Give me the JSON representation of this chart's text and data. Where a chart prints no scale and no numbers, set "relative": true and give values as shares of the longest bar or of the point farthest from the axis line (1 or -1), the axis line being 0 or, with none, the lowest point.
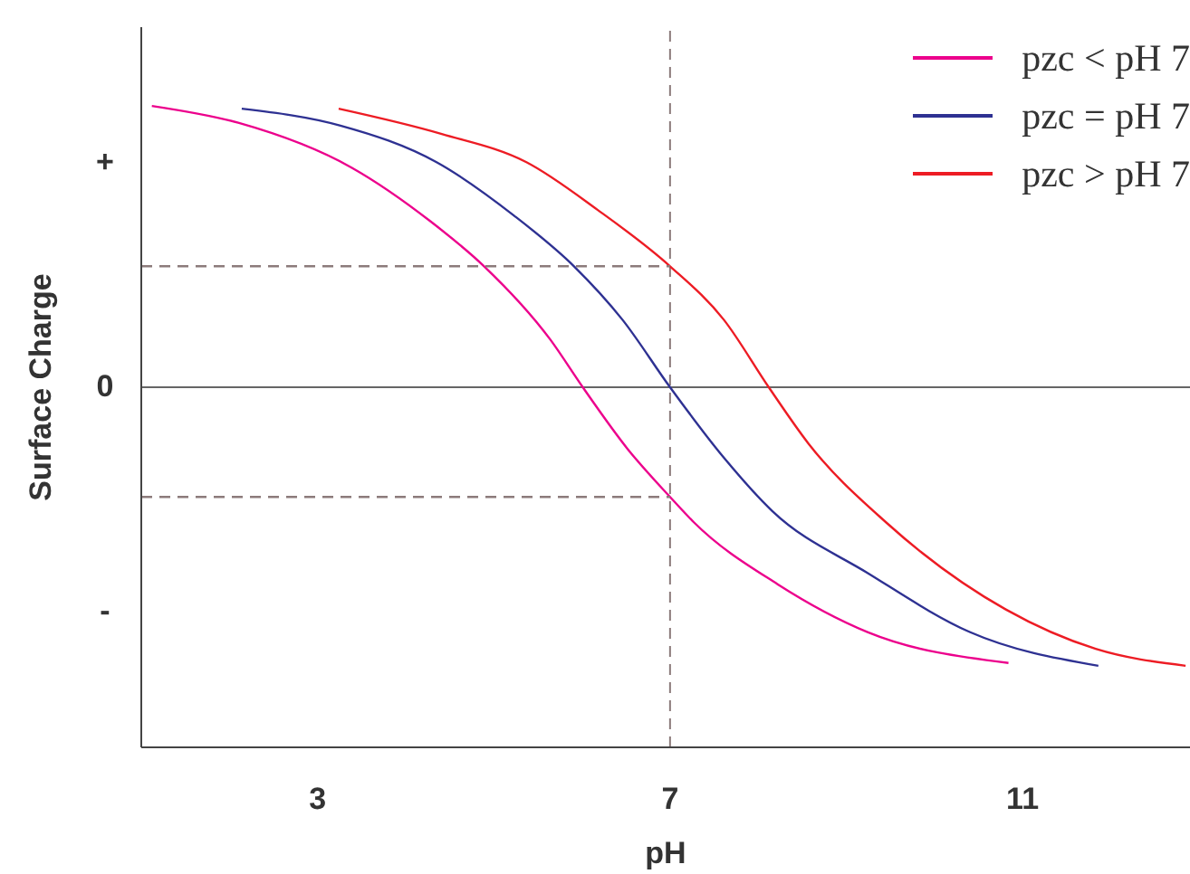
{
  "chart_data": {
    "type": "line",
    "relative": true,
    "xlabel": "pH",
    "ylabel": "Surface Charge",
    "xlim": [
      1,
      12.9
    ],
    "xticks": [
      3,
      7,
      11
    ],
    "annotations": [
      "+",
      "0",
      "-"
    ],
    "legend": "top right",
    "series": [
      {
        "name": "pzc < pH 7",
        "color": "#ec008c",
        "x": [
          1.12,
          2.1,
          3.39,
          4.28,
          4.89,
          5.64,
          6.01,
          6.52,
          7,
          7.27,
          8.22,
          9.24,
          10.84
        ],
        "values": [
          1,
          0.94,
          0.78,
          0.59,
          0.43,
          0.17,
          0,
          -0.22,
          -0.39,
          -0.48,
          -0.7,
          -0.87,
          -0.98
        ]
      },
      {
        "name": "pzc = pH 7",
        "color": "#2e3192",
        "x": [
          2.14,
          3.26,
          4.35,
          5.23,
          5.91,
          6.46,
          7,
          7.61,
          8.16,
          9.24,
          10.4,
          11.86
        ],
        "values": [
          0.99,
          0.93,
          0.8,
          0.61,
          0.43,
          0.24,
          0,
          -0.25,
          -0.44,
          -0.66,
          -0.87,
          -0.99
        ]
      },
      {
        "name": "pzc > pH 7",
        "color": "#ed1c24",
        "x": [
          3.24,
          4.41,
          5.37,
          6.18,
          7,
          7.61,
          8.12,
          8.57,
          9.45,
          10.81,
          11.83,
          12.85
        ],
        "values": [
          0.99,
          0.9,
          0.8,
          0.63,
          0.43,
          0.24,
          0,
          -0.2,
          -0.48,
          -0.79,
          -0.93,
          -0.99
        ]
      },
      {
        "type": "line",
        "color": "#8c7b7b",
        "line_style": "dashed",
        "x": [
          1,
          7
        ],
        "values": [
          0.43,
          0.43
        ]
      },
      {
        "type": "line",
        "color": "#8c7b7b",
        "line_style": "dashed",
        "x": [
          1,
          7
        ],
        "values": [
          -0.39,
          -0.39
        ]
      }
    ],
    "ref_lines": [
      {
        "axis": "x",
        "value": 7,
        "color": "#8c7b7b",
        "line_style": "dashed"
      },
      {
        "axis": "y",
        "value": 0,
        "color": "#666666",
        "line_style": "solid"
      }
    ]
  }
}
